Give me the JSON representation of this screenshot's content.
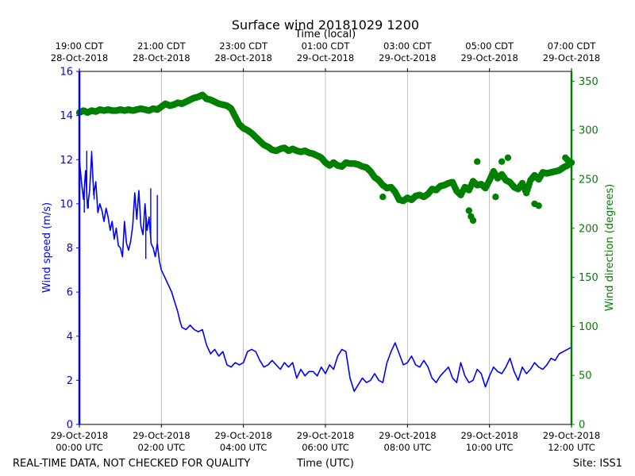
{
  "chart_data": {
    "type": "line",
    "title": "Surface wind 20181029 1200",
    "top_axis_label": "Time (local)",
    "bottom_axis_label": "Time (UTC)",
    "footer_left": "REAL-TIME DATA, NOT CHECKED FOR QUALITY",
    "footer_right": "Site: ISS1",
    "x_range_hours_utc": [
      0,
      12
    ],
    "top_ticks": [
      {
        "hour": 0,
        "line1": "19:00 CDT",
        "line2": "28-Oct-2018"
      },
      {
        "hour": 2,
        "line1": "21:00 CDT",
        "line2": "28-Oct-2018"
      },
      {
        "hour": 4,
        "line1": "23:00 CDT",
        "line2": "28-Oct-2018"
      },
      {
        "hour": 6,
        "line1": "01:00 CDT",
        "line2": "29-Oct-2018"
      },
      {
        "hour": 8,
        "line1": "03:00 CDT",
        "line2": "29-Oct-2018"
      },
      {
        "hour": 10,
        "line1": "05:00 CDT",
        "line2": "29-Oct-2018"
      },
      {
        "hour": 12,
        "line1": "07:00 CDT",
        "line2": "29-Oct-2018"
      }
    ],
    "bottom_ticks": [
      {
        "hour": 0,
        "line1": "29-Oct-2018",
        "line2": "00:00 UTC"
      },
      {
        "hour": 2,
        "line1": "29-Oct-2018",
        "line2": "02:00 UTC"
      },
      {
        "hour": 4,
        "line1": "29-Oct-2018",
        "line2": "04:00 UTC"
      },
      {
        "hour": 6,
        "line1": "29-Oct-2018",
        "line2": "06:00 UTC"
      },
      {
        "hour": 8,
        "line1": "29-Oct-2018",
        "line2": "08:00 UTC"
      },
      {
        "hour": 10,
        "line1": "29-Oct-2018",
        "line2": "10:00 UTC"
      },
      {
        "hour": 12,
        "line1": "29-Oct-2018",
        "line2": "12:00 UTC"
      }
    ],
    "left_axis": {
      "label": "Wind speed (m/s)",
      "ylim": [
        0,
        16
      ],
      "ticks": [
        0,
        2,
        4,
        6,
        8,
        10,
        12,
        14,
        16
      ],
      "color": "#0000ff"
    },
    "right_axis": {
      "label": "Wind direction (degrees)",
      "ylim": [
        0,
        360
      ],
      "ticks": [
        0,
        50,
        100,
        150,
        200,
        250,
        300,
        350
      ],
      "color": "#008000"
    },
    "grid": "vertical",
    "series": [
      {
        "name": "Wind speed",
        "axis": "left",
        "style": "line",
        "color": "#0000ff",
        "x": [
          0,
          0.05,
          0.1,
          0.15,
          0.2,
          0.25,
          0.3,
          0.35,
          0.4,
          0.45,
          0.5,
          0.55,
          0.6,
          0.65,
          0.7,
          0.75,
          0.8,
          0.85,
          0.9,
          0.95,
          1.0,
          1.05,
          1.1,
          1.15,
          1.2,
          1.25,
          1.3,
          1.35,
          1.4,
          1.45,
          1.5,
          1.55,
          1.6,
          1.65,
          1.7,
          1.75,
          1.8,
          1.85,
          1.9,
          1.95,
          2.0,
          2.05,
          2.1,
          2.15,
          2.2,
          2.25,
          2.3,
          2.35,
          2.4,
          2.45,
          2.5,
          2.6,
          2.7,
          2.8,
          2.9,
          3.0,
          3.1,
          3.2,
          3.3,
          3.4,
          3.5,
          3.6,
          3.7,
          3.8,
          3.9,
          4.0,
          4.1,
          4.2,
          4.3,
          4.4,
          4.5,
          4.6,
          4.7,
          4.8,
          4.9,
          5.0,
          5.1,
          5.2,
          5.3,
          5.4,
          5.5,
          5.6,
          5.7,
          5.8,
          5.9,
          6.0,
          6.1,
          6.2,
          6.3,
          6.4,
          6.5,
          6.6,
          6.7,
          6.8,
          6.9,
          7.0,
          7.1,
          7.2,
          7.3,
          7.4,
          7.5,
          7.6,
          7.7,
          7.8,
          7.9,
          8.0,
          8.1,
          8.2,
          8.3,
          8.4,
          8.5,
          8.6,
          8.7,
          8.8,
          8.9,
          9.0,
          9.1,
          9.2,
          9.3,
          9.4,
          9.5,
          9.6,
          9.7,
          9.8,
          9.9,
          10.0,
          10.1,
          10.2,
          10.3,
          10.4,
          10.5,
          10.6,
          10.7,
          10.8,
          10.9,
          11.0,
          11.1,
          11.2,
          11.3,
          11.4,
          11.5,
          11.6,
          11.7,
          11.8,
          11.9,
          12.0
        ],
        "values": [
          12.0,
          11.0,
          10.2,
          11.5,
          9.8,
          10.6,
          12.3,
          10.4,
          11.0,
          9.6,
          10.0,
          9.7,
          9.2,
          9.8,
          9.4,
          8.8,
          9.2,
          8.4,
          8.9,
          8.1,
          8.0,
          7.6,
          9.2,
          8.2,
          7.9,
          8.3,
          9.0,
          10.5,
          9.3,
          10.6,
          9.0,
          8.6,
          10.0,
          8.8,
          9.4,
          8.2,
          8.0,
          7.6,
          8.2,
          7.4,
          7.0,
          6.8,
          6.6,
          6.4,
          6.2,
          6.0,
          5.7,
          5.4,
          5.1,
          4.7,
          4.4,
          4.3,
          4.5,
          4.3,
          4.2,
          4.3,
          3.6,
          3.2,
          3.4,
          3.1,
          3.3,
          2.7,
          2.6,
          2.8,
          2.7,
          2.8,
          3.3,
          3.4,
          3.3,
          2.9,
          2.6,
          2.7,
          2.9,
          2.7,
          2.5,
          2.8,
          2.6,
          2.8,
          2.1,
          2.5,
          2.2,
          2.4,
          2.4,
          2.2,
          2.6,
          2.3,
          2.7,
          2.5,
          3.1,
          3.4,
          3.3,
          2.1,
          1.5,
          1.8,
          2.1,
          1.9,
          2.0,
          2.3,
          2.0,
          1.9,
          2.8,
          3.3,
          3.7,
          3.2,
          2.7,
          2.8,
          3.1,
          2.7,
          2.6,
          2.9,
          2.6,
          2.1,
          1.9,
          2.2,
          2.4,
          2.6,
          2.1,
          1.9,
          2.8,
          2.2,
          1.9,
          2.0,
          2.5,
          2.3,
          1.7,
          2.2,
          2.6,
          2.4,
          2.3,
          2.6,
          3.0,
          2.4,
          2.0,
          2.6,
          2.3,
          2.5,
          2.8,
          2.6,
          2.5,
          2.7,
          3.0,
          2.9,
          3.2,
          3.3,
          3.4,
          3.5
        ],
        "x_spikes": [
          0.12,
          0.18,
          0.22,
          0.3,
          0.36,
          1.62,
          1.74,
          1.9
        ],
        "spike_values": [
          9.6,
          12.4,
          9.8,
          12.4,
          10.2,
          7.5,
          10.7,
          10.4
        ]
      },
      {
        "name": "Wind direction",
        "axis": "right",
        "style": "dots",
        "color": "#008000",
        "x": [
          0,
          0.1,
          0.2,
          0.3,
          0.4,
          0.5,
          0.6,
          0.7,
          0.8,
          0.9,
          1.0,
          1.1,
          1.2,
          1.3,
          1.4,
          1.5,
          1.6,
          1.7,
          1.8,
          1.9,
          2.0,
          2.1,
          2.2,
          2.3,
          2.4,
          2.5,
          2.6,
          2.7,
          2.8,
          2.9,
          3.0,
          3.1,
          3.2,
          3.3,
          3.4,
          3.5,
          3.6,
          3.7,
          3.8,
          3.9,
          4.0,
          4.1,
          4.2,
          4.3,
          4.4,
          4.5,
          4.6,
          4.7,
          4.8,
          4.9,
          5.0,
          5.1,
          5.2,
          5.3,
          5.4,
          5.5,
          5.6,
          5.7,
          5.8,
          5.9,
          6.0,
          6.1,
          6.2,
          6.3,
          6.4,
          6.5,
          6.6,
          6.7,
          6.8,
          6.9,
          7.0,
          7.1,
          7.2,
          7.3,
          7.4,
          7.5,
          7.6,
          7.7,
          7.8,
          7.9,
          8.0,
          8.1,
          8.2,
          8.3,
          8.4,
          8.5,
          8.6,
          8.7,
          8.8,
          8.9,
          9.0,
          9.1,
          9.2,
          9.3,
          9.4,
          9.5,
          9.6,
          9.7,
          9.8,
          9.9,
          10.0,
          10.1,
          10.2,
          10.3,
          10.4,
          10.5,
          10.6,
          10.7,
          10.8,
          10.9,
          11.0,
          11.1,
          11.2,
          11.3,
          11.4,
          11.5,
          11.6,
          11.7,
          11.8,
          11.9,
          12.0
        ],
        "values": [
          318,
          320,
          318,
          320,
          319,
          321,
          320,
          321,
          320,
          320,
          321,
          320,
          321,
          320,
          321,
          322,
          321,
          320,
          322,
          321,
          324,
          327,
          325,
          326,
          328,
          327,
          329,
          331,
          333,
          334,
          336,
          332,
          331,
          329,
          327,
          326,
          325,
          322,
          314,
          306,
          302,
          300,
          297,
          293,
          289,
          285,
          283,
          280,
          279,
          281,
          282,
          279,
          281,
          279,
          278,
          279,
          277,
          276,
          274,
          272,
          267,
          264,
          267,
          264,
          263,
          267,
          266,
          266,
          265,
          263,
          262,
          258,
          252,
          249,
          244,
          241,
          242,
          237,
          229,
          228,
          231,
          229,
          233,
          234,
          232,
          235,
          240,
          239,
          243,
          244,
          246,
          247,
          238,
          234,
          242,
          239,
          248,
          244,
          245,
          241,
          249,
          258,
          251,
          255,
          249,
          247,
          242,
          240,
          246,
          236,
          249,
          254,
          250,
          257,
          256,
          257,
          258,
          259,
          262,
          264,
          267
        ],
        "x_outliers": [
          7.4,
          9.5,
          9.55,
          9.6,
          9.7,
          10.15,
          10.3,
          10.45,
          11.1,
          11.2,
          11.85,
          11.9
        ],
        "outlier_values": [
          232,
          218,
          212,
          208,
          268,
          232,
          268,
          272,
          225,
          223,
          272,
          270
        ]
      }
    ]
  }
}
